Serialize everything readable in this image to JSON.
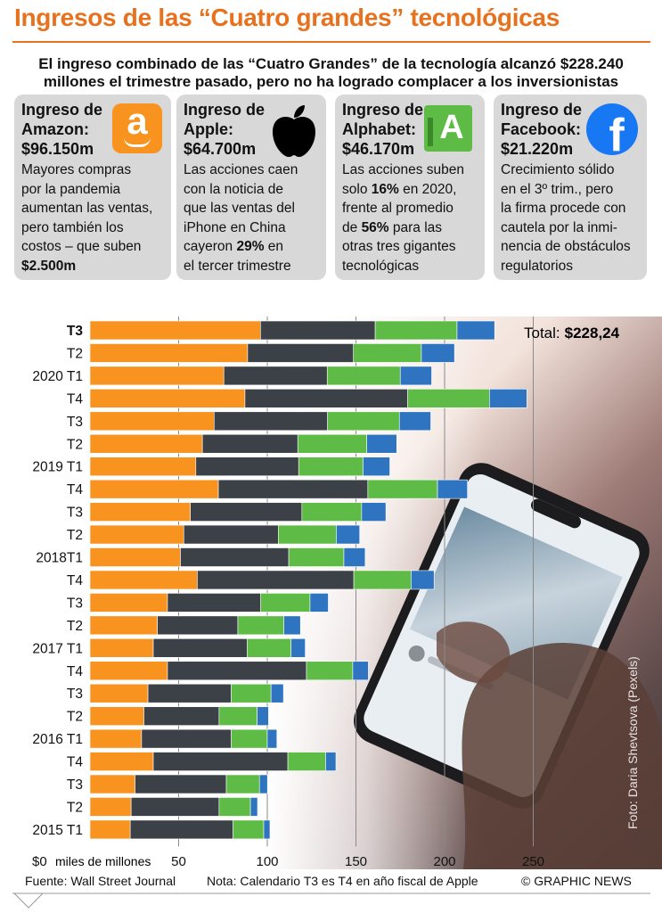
{
  "title": "Ingresos de las “Cuatro grandes” tecnológicas",
  "subtitle_line1": "El ingreso combinado de las “Cuatro Grandes” de la tecnología alcanzó $228.240",
  "subtitle_line2": "millones el trimestre pasado, pero no ha logrado complacer a los inversionistas",
  "cards": [
    {
      "h1": "Ingreso de",
      "h2": "Amazon:",
      "h3": "$96.150m",
      "body": [
        "Mayores compras",
        "por la pandemia",
        "aumentan las ventas,",
        "pero también los",
        "costos – que suben",
        "$2.500m"
      ]
    },
    {
      "h1": "Ingreso de",
      "h2": "Apple:",
      "h3": "$64.700m",
      "body": [
        "Las acciones caen",
        "con la noticia de",
        "que las ventas del",
        "iPhone en China",
        "cayeron 29% en",
        "el tercer trimestre"
      ]
    },
    {
      "h1": "Ingreso de",
      "h2": "Alphabet:",
      "h3": "$46.170m",
      "body": [
        "Las acciones suben",
        "solo 16% en 2020,",
        "frente al promedio",
        "de 56% para las",
        "otras tres gigantes",
        "tecnológicas"
      ]
    },
    {
      "h1": "Ingreso de",
      "h2": "Facebook:",
      "h3": "$21.220m",
      "body": [
        "Crecimiento sólido",
        "en el 3º trim., pero",
        "la firma procede con",
        "cautela por la inmi-",
        "nencia de obstáculos",
        "regulatorios"
      ]
    }
  ],
  "logos": {
    "amazon": "a",
    "alphabet": "A",
    "facebook": "f"
  },
  "colors": {
    "amazon": "#f7931e",
    "apple": "#3c4148",
    "alphabet": "#5dbb46",
    "facebook": "#2f74c0",
    "accent": "#e8711e",
    "card": "#d8d8d8"
  },
  "total_label": "Total:",
  "total_value": "$228,24",
  "axis_unit_label": "miles de millones",
  "photo_credit": "Foto: Daria Shevtsova (Pexels)",
  "footer": {
    "source": "Fuente: Wall Street Journal",
    "note": "Nota: Calendario T3 es T4 en año fiscal de Apple",
    "copyright": "© GRAPHIC NEWS"
  },
  "chart_data": {
    "type": "bar",
    "orientation": "horizontal",
    "stacked": true,
    "categories": [
      "T3",
      "T2",
      "2020 T1",
      "T4",
      "T3",
      "T2",
      "2019 T1",
      "T4",
      "T3",
      "T2",
      "2018T1",
      "T4",
      "T3",
      "T2",
      "2017 T1",
      "T4",
      "T3",
      "T2",
      "2016 T1",
      "T4",
      "T3",
      "T2",
      "2015 T1"
    ],
    "bold_category_index": 0,
    "series": [
      {
        "name": "Amazon",
        "values": [
          96.15,
          88.9,
          75.5,
          87.4,
          70.0,
          63.4,
          59.7,
          72.4,
          56.6,
          52.9,
          51.0,
          60.5,
          43.7,
          38.0,
          35.7,
          43.7,
          32.7,
          30.4,
          29.1,
          35.7,
          25.4,
          23.2,
          22.7
        ]
      },
      {
        "name": "Apple",
        "values": [
          64.7,
          59.7,
          58.3,
          91.8,
          64.0,
          53.8,
          58.0,
          84.3,
          62.9,
          53.3,
          61.1,
          88.3,
          52.6,
          45.4,
          52.9,
          78.4,
          46.9,
          42.4,
          50.6,
          75.9,
          51.5,
          49.6,
          58.0
        ]
      },
      {
        "name": "Alphabet",
        "values": [
          46.17,
          38.3,
          41.2,
          46.1,
          40.5,
          38.9,
          36.3,
          39.3,
          33.7,
          32.7,
          31.1,
          32.3,
          27.8,
          26.0,
          24.8,
          26.1,
          22.5,
          21.5,
          20.3,
          21.3,
          18.7,
          17.7,
          17.3
        ]
      },
      {
        "name": "Facebook",
        "values": [
          21.22,
          18.7,
          17.7,
          21.1,
          17.7,
          16.9,
          15.1,
          16.9,
          13.7,
          13.2,
          12.0,
          12.97,
          10.3,
          9.3,
          8.0,
          8.8,
          7.0,
          6.4,
          5.4,
          5.8,
          4.5,
          4.0,
          3.5
        ]
      }
    ],
    "xlim": [
      0,
      260
    ],
    "xticks": [
      0,
      50,
      100,
      150,
      200,
      250
    ],
    "xtick_labels": [
      "$0",
      "50",
      "100",
      "150",
      "200",
      "250"
    ],
    "xlabel": "miles de millones"
  }
}
